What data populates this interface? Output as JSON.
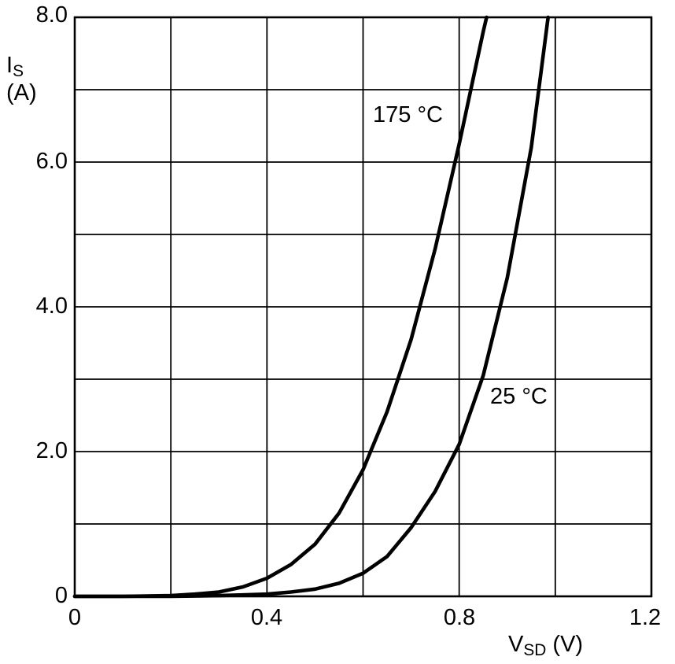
{
  "chart_data": {
    "type": "line",
    "title": "",
    "xlabel": {
      "symbol": "V",
      "subscript": "SD",
      "unit": "(V)"
    },
    "ylabel": {
      "symbol": "I",
      "subscript": "S",
      "unit": "(A)"
    },
    "xlim": [
      0,
      1.2
    ],
    "ylim": [
      0,
      8
    ],
    "x_gridstep": 0.2,
    "y_gridstep": 1.0,
    "xticks": [
      0,
      0.4,
      0.8,
      1.2
    ],
    "xtick_labels": [
      "0",
      "0.4",
      "0.8",
      "1.2"
    ],
    "yticks": [
      0,
      2,
      4,
      6,
      8
    ],
    "ytick_labels": [
      "0",
      "2.0",
      "4.0",
      "6.0",
      "8.0"
    ],
    "grid": true,
    "legend_position": "inline-annotations",
    "line_color": "#000000",
    "grid_color": "#000000",
    "background": "#ffffff",
    "series": [
      {
        "name": "175 °C",
        "x": [
          0,
          0.1,
          0.2,
          0.25,
          0.3,
          0.35,
          0.4,
          0.45,
          0.5,
          0.55,
          0.6,
          0.65,
          0.7,
          0.75,
          0.8,
          0.85,
          0.857
        ],
        "y": [
          0,
          0.0,
          0.01,
          0.03,
          0.06,
          0.13,
          0.25,
          0.44,
          0.72,
          1.15,
          1.75,
          2.55,
          3.55,
          4.8,
          6.25,
          7.8,
          8.0
        ],
        "label_anchor": {
          "x": 0.62,
          "y": 6.6
        }
      },
      {
        "name": "25 °C",
        "x": [
          0,
          0.2,
          0.3,
          0.35,
          0.4,
          0.45,
          0.5,
          0.55,
          0.6,
          0.65,
          0.7,
          0.75,
          0.8,
          0.85,
          0.9,
          0.95,
          0.985
        ],
        "y": [
          0,
          0.0,
          0.01,
          0.02,
          0.03,
          0.06,
          0.1,
          0.18,
          0.32,
          0.55,
          0.95,
          1.45,
          2.1,
          3.05,
          4.4,
          6.2,
          8.0
        ],
        "label_anchor": {
          "x": 0.865,
          "y": 2.7
        }
      }
    ]
  }
}
